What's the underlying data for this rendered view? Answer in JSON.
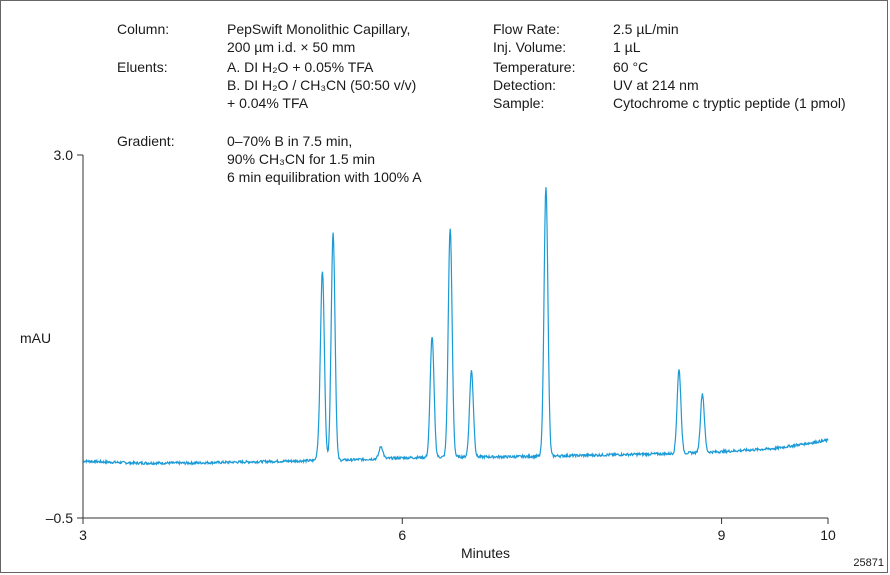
{
  "conditions": {
    "left": [
      {
        "label": "Column:",
        "lines": [
          "PepSwift  Monolithic Capillary,",
          "200 µm i.d. × 50 mm"
        ]
      },
      {
        "label": "Eluents:",
        "lines": [
          "A. DI H₂O + 0.05% TFA",
          "B. DI H₂O / CH₃CN (50:50 v/v)",
          "+ 0.04% TFA"
        ]
      },
      {
        "label": "Gradient:",
        "lines": [
          "0–70% B in 7.5 min,",
          "90% CH₃CN for 1.5 min",
          "6 min equilibration with 100% A"
        ]
      }
    ],
    "right": [
      {
        "label": "Flow Rate:",
        "value": "2.5 µL/min"
      },
      {
        "label": "Inj. Volume:",
        "value": "1 µL"
      },
      {
        "label": "Temperature:",
        "value": "60 °C"
      },
      {
        "label": "Detection:",
        "value": "UV at 214 nm"
      },
      {
        "label": "Sample:",
        "value": "Cytochrome c tryptic peptide (1 pmol)"
      }
    ]
  },
  "figure_code": "25871",
  "chart_data": {
    "type": "line",
    "xlabel": "Minutes",
    "ylabel": "mAU",
    "xlim": [
      3,
      10
    ],
    "ylim": [
      -0.5,
      3.0
    ],
    "x_ticks": [
      3,
      6,
      9,
      10
    ],
    "y_ticks": [
      "3.0",
      "–0.5"
    ],
    "line_color": "#1a9ad6",
    "baseline": [
      [
        3.0,
        0.05
      ],
      [
        3.2,
        0.04
      ],
      [
        3.5,
        0.03
      ],
      [
        4.0,
        0.03
      ],
      [
        4.5,
        0.04
      ],
      [
        5.0,
        0.05
      ],
      [
        5.5,
        0.06
      ],
      [
        6.0,
        0.08
      ],
      [
        6.5,
        0.09
      ],
      [
        7.0,
        0.09
      ],
      [
        7.5,
        0.1
      ],
      [
        8.0,
        0.11
      ],
      [
        8.5,
        0.12
      ],
      [
        9.0,
        0.14
      ],
      [
        9.5,
        0.17
      ],
      [
        10.0,
        0.25
      ]
    ],
    "peaks": [
      {
        "x": 5.22,
        "y": 0.18
      },
      {
        "x": 5.25,
        "y": 1.85
      },
      {
        "x": 5.35,
        "y": 2.25
      },
      {
        "x": 5.8,
        "y": 0.19
      },
      {
        "x": 6.28,
        "y": 1.25
      },
      {
        "x": 6.45,
        "y": 2.3
      },
      {
        "x": 6.65,
        "y": 0.92
      },
      {
        "x": 7.35,
        "y": 2.7
      },
      {
        "x": 8.6,
        "y": 0.93
      },
      {
        "x": 8.82,
        "y": 0.7
      }
    ]
  }
}
